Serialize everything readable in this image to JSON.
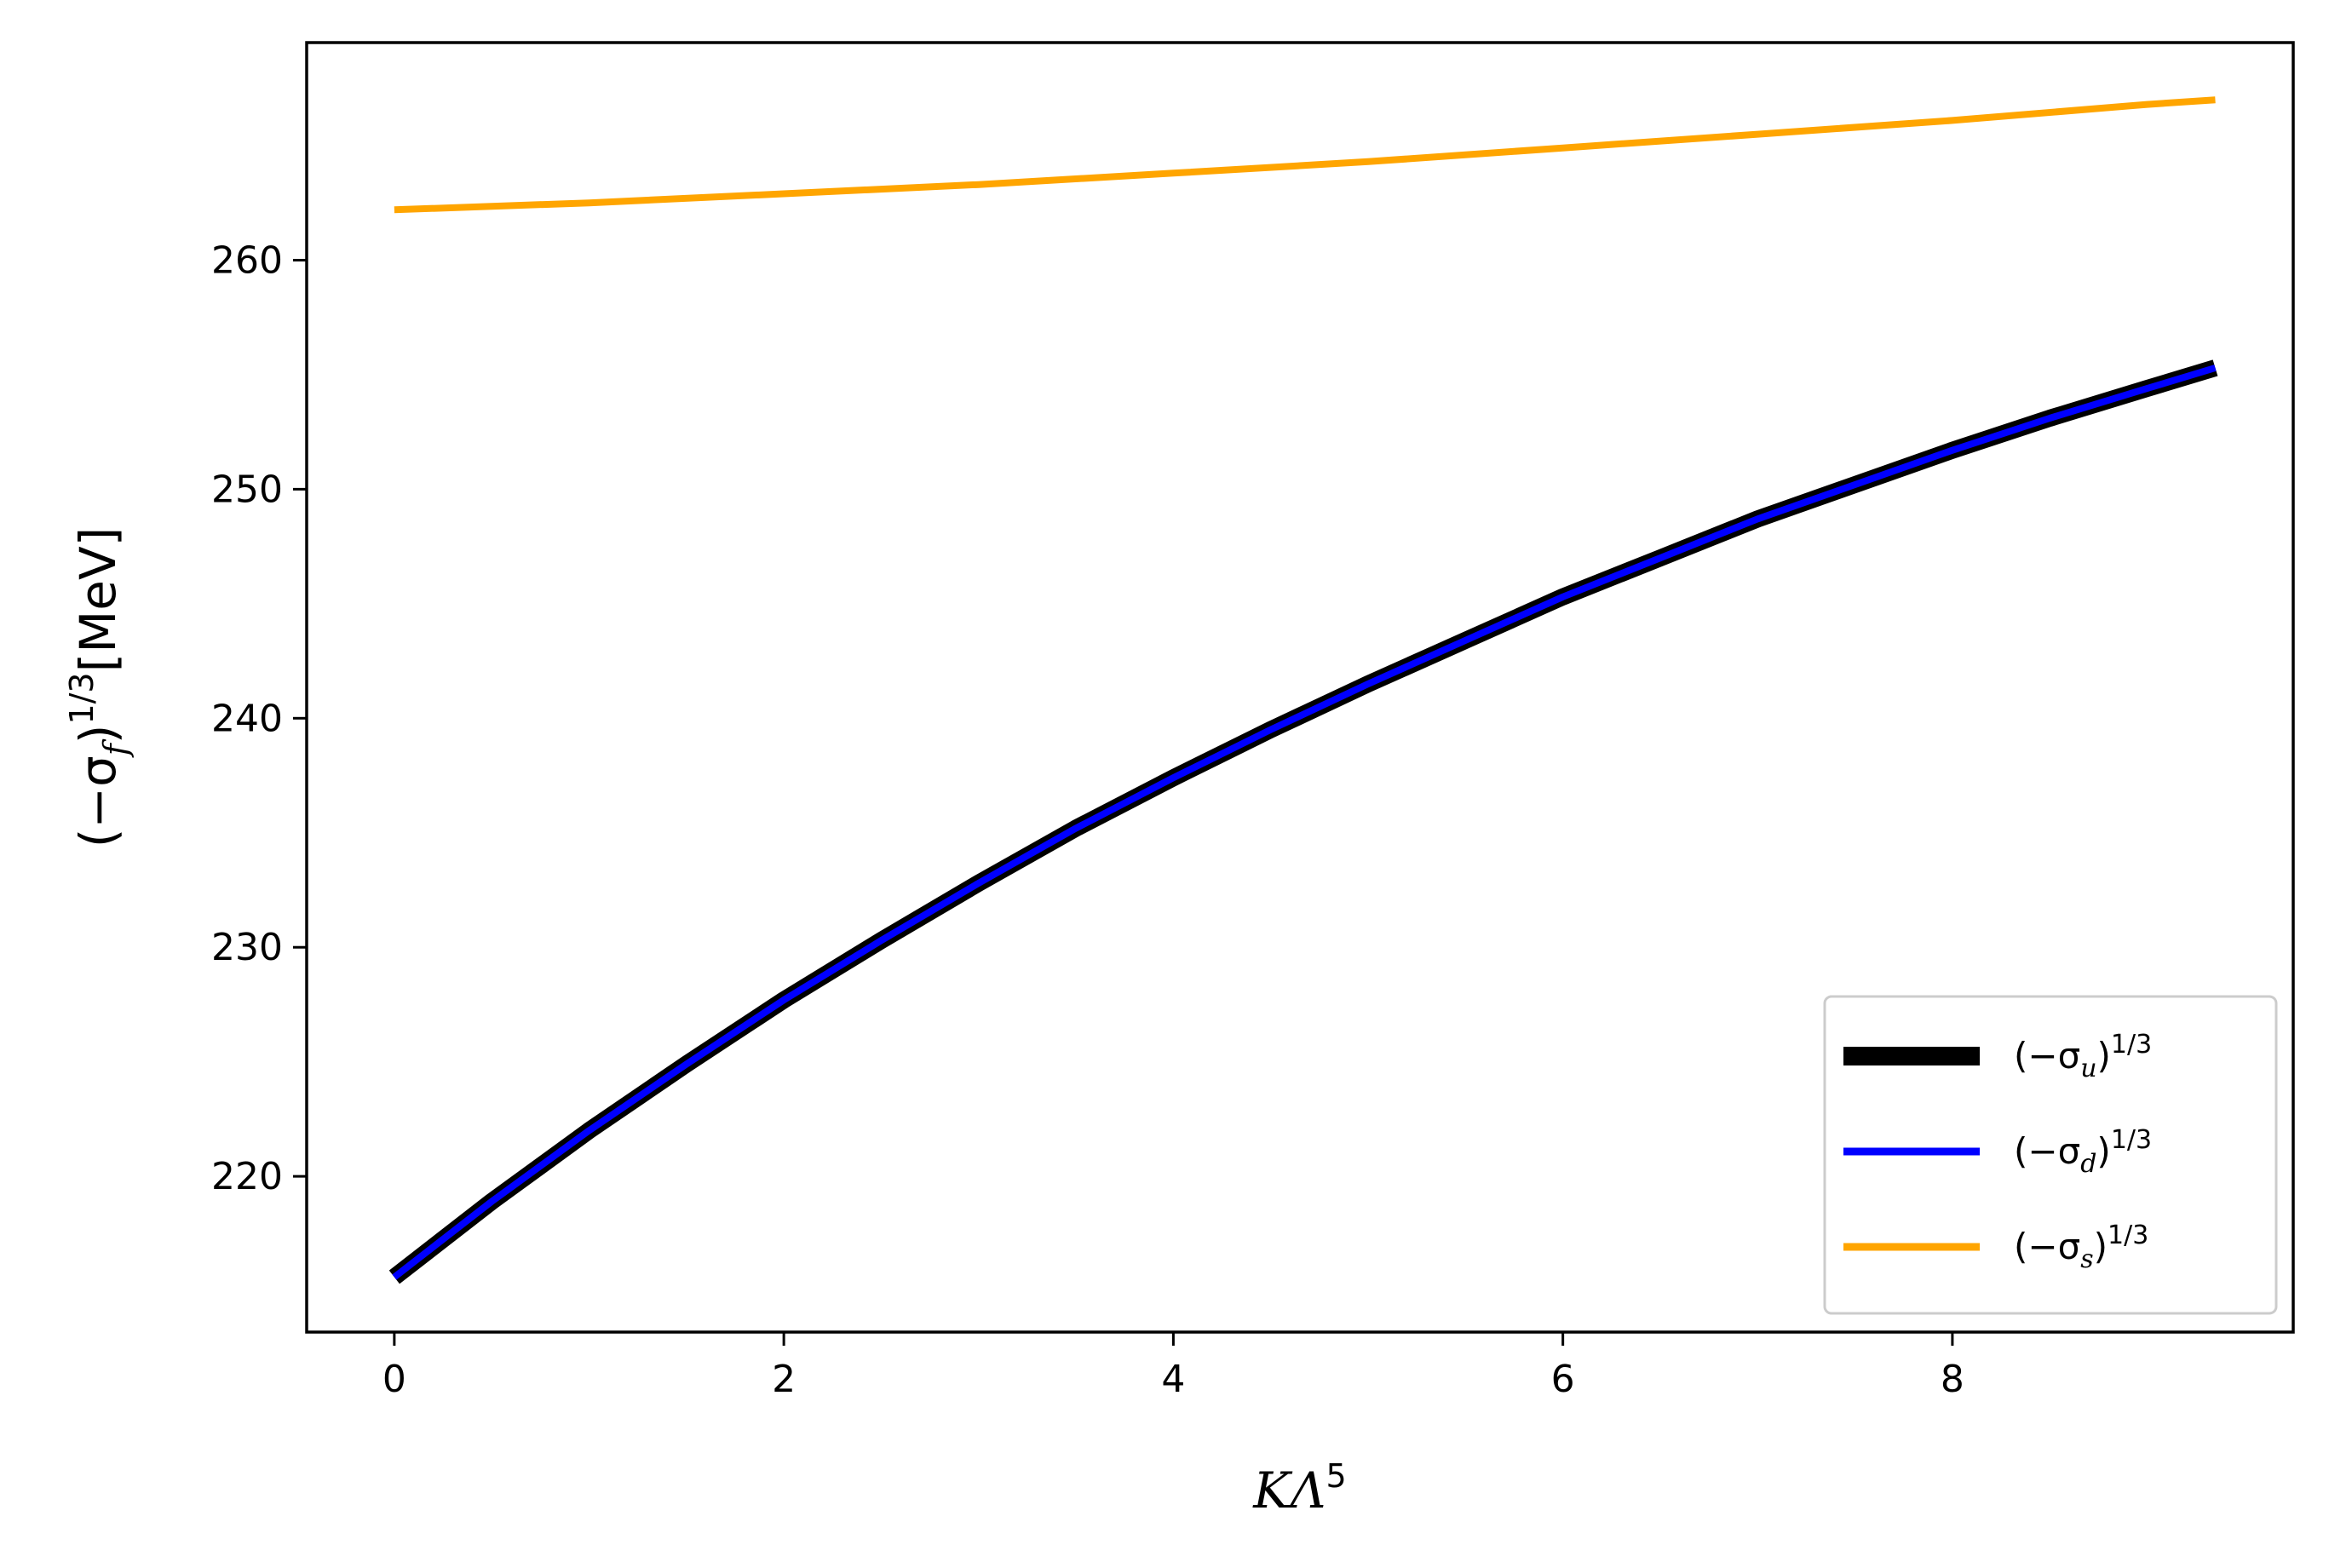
{
  "chart_data": {
    "type": "line",
    "xlabel": {
      "base": "KΛ",
      "sup": "5"
    },
    "ylabel": {
      "pre": "(−σ",
      "sub": "f",
      "mid": ")",
      "sup": "1/3",
      "post": "[MeV]"
    },
    "xlim": [
      -0.45,
      9.75
    ],
    "ylim": [
      213.2,
      269.5
    ],
    "xticks": [
      0,
      2,
      4,
      6,
      8
    ],
    "yticks": [
      220,
      230,
      240,
      250,
      260
    ],
    "grid": false,
    "legend": {
      "placement": "lower-right"
    },
    "series": [
      {
        "key": "u",
        "legend": {
          "pre": "(−σ",
          "sub": "u",
          "mid": ")",
          "sup": "1/3"
        },
        "color": "#000000",
        "style": "thick",
        "x": [
          0,
          0.5,
          1,
          1.5,
          2,
          2.5,
          3,
          3.5,
          4,
          4.5,
          5,
          5.5,
          6,
          6.5,
          7,
          7.5,
          8,
          8.5,
          9,
          9.35
        ],
        "y": [
          215.6,
          218.9,
          222.0,
          224.9,
          227.7,
          230.3,
          232.8,
          235.2,
          237.4,
          239.5,
          241.5,
          243.4,
          245.3,
          247.0,
          248.7,
          250.2,
          251.7,
          253.1,
          254.4,
          255.3
        ]
      },
      {
        "key": "d",
        "legend": {
          "pre": "(−σ",
          "sub": "d",
          "mid": ")",
          "sup": "1/3"
        },
        "color": "#0000ff",
        "style": "normal",
        "x": [
          0,
          0.5,
          1,
          1.5,
          2,
          2.5,
          3,
          3.5,
          4,
          4.5,
          5,
          5.5,
          6,
          6.5,
          7,
          7.5,
          8,
          8.5,
          9,
          9.35
        ],
        "y": [
          215.6,
          218.9,
          222.0,
          224.9,
          227.7,
          230.3,
          232.8,
          235.2,
          237.4,
          239.5,
          241.5,
          243.4,
          245.3,
          247.0,
          248.7,
          250.2,
          251.7,
          253.1,
          254.4,
          255.3
        ]
      },
      {
        "key": "s",
        "legend": {
          "pre": "(−σ",
          "sub": "s",
          "mid": ")",
          "sup": "1/3"
        },
        "color": "#ffa500",
        "style": "normal",
        "x": [
          0,
          1,
          2,
          3,
          4,
          5,
          6,
          7,
          8,
          9,
          9.35
        ],
        "y": [
          262.2,
          262.5,
          262.9,
          263.3,
          263.8,
          264.3,
          264.9,
          265.5,
          266.1,
          266.8,
          267.0
        ]
      }
    ]
  }
}
